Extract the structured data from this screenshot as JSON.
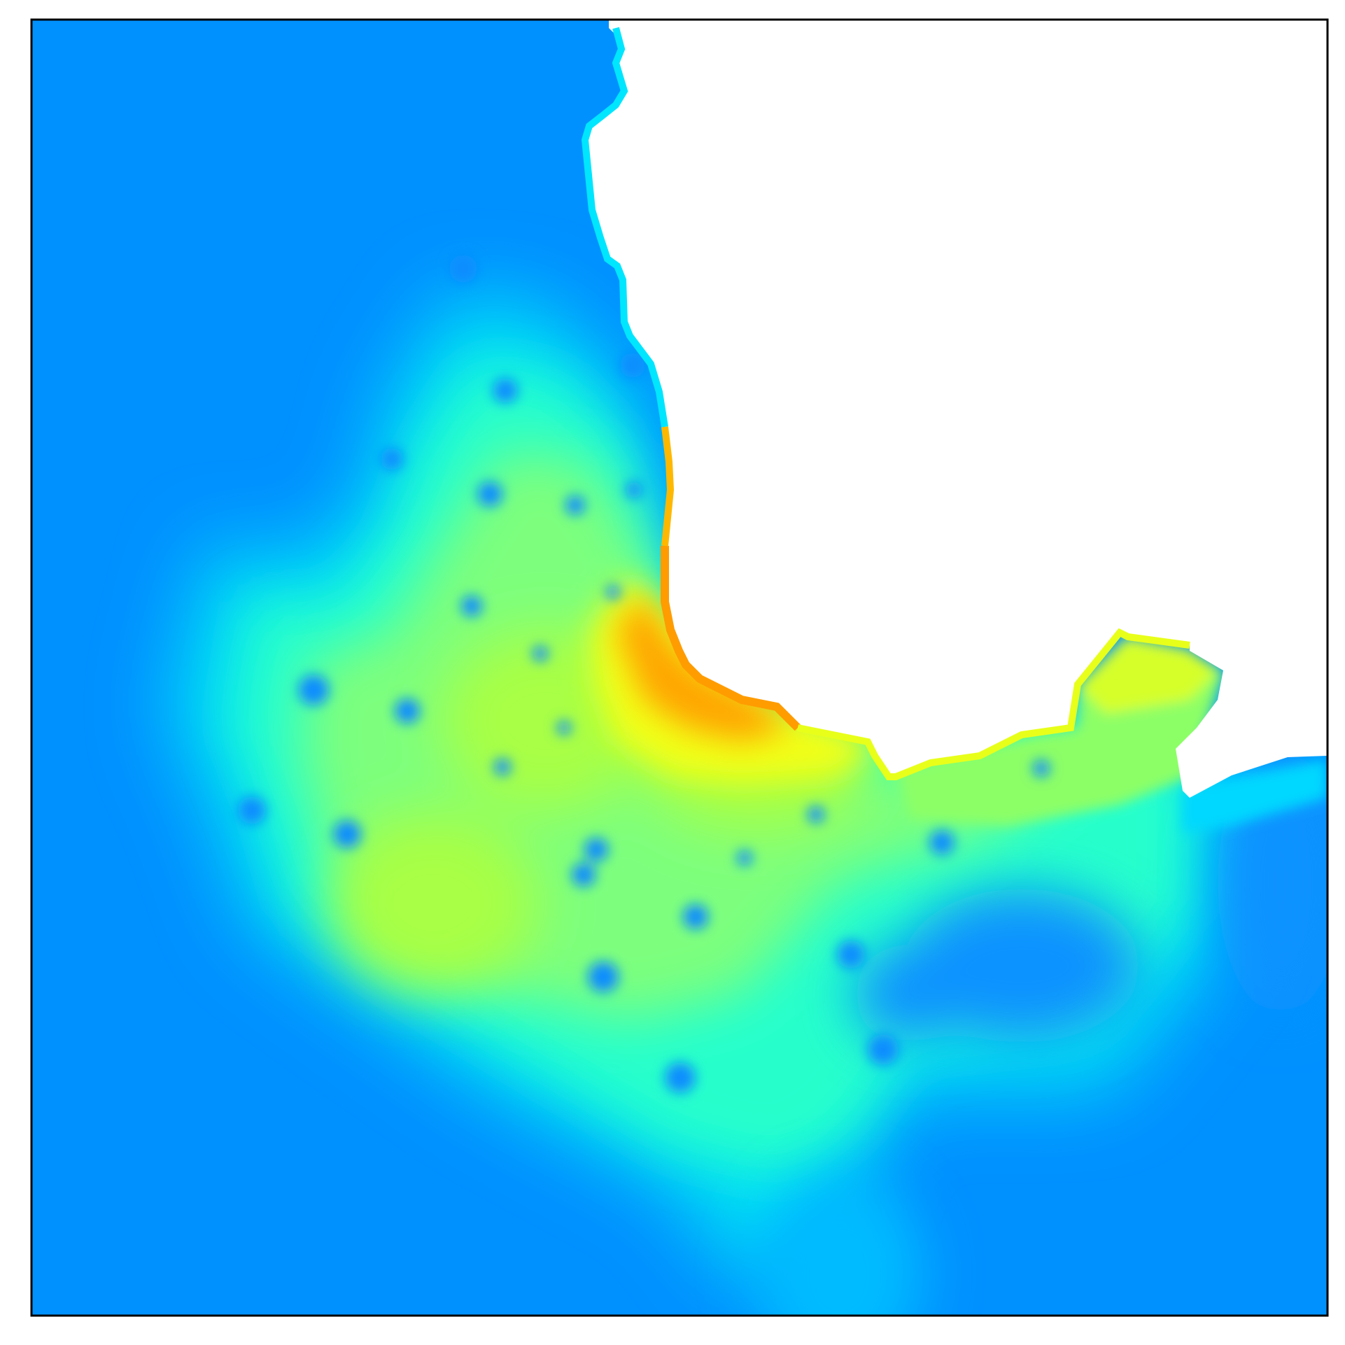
{
  "chart_data": {
    "type": "heatmap",
    "title": "",
    "xlabel": "",
    "ylabel": "",
    "axis_ticks": "none",
    "grid": false,
    "legend": "none",
    "colormap": "jet",
    "masked_region": "white (no data)",
    "field": {
      "background_level": 0.3,
      "colors": {
        "deep_blue": "#0091ff",
        "cyan": "#00e5f0",
        "aqua_green": "#22ffd0",
        "light_green": "#9eff55",
        "yellow": "#f0ff10",
        "orange": "#ffa000",
        "white_mask": "#ffffff",
        "frame": "#000000"
      }
    }
  }
}
